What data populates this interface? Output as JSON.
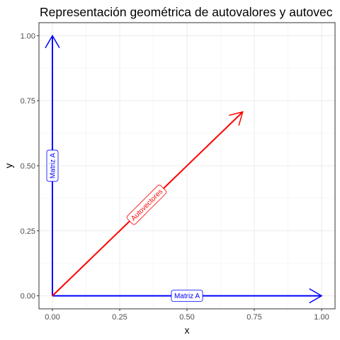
{
  "chart_data": {
    "type": "line",
    "title": "Representación geométrica de autovalores y autovec",
    "xlabel": "x",
    "ylabel": "y",
    "xlim": [
      -0.05,
      1.05
    ],
    "ylim": [
      -0.05,
      1.05
    ],
    "grid": true,
    "x_ticks": [
      0,
      0.25,
      0.5,
      0.75,
      1
    ],
    "y_ticks": [
      0,
      0.25,
      0.5,
      0.75,
      1
    ],
    "x_tick_labels": [
      "0.00",
      "0.25",
      "0.50",
      "0.75",
      "1.00"
    ],
    "y_tick_labels": [
      "0.00",
      "0.25",
      "0.50",
      "0.75",
      "1.00"
    ],
    "vectors": [
      {
        "id": "matriz-a-x",
        "x0": 0,
        "y0": 0,
        "x1": 1,
        "y1": 0,
        "color": "#0000ff",
        "label": "Matriz A",
        "label_x": 0.5,
        "label_y": 0,
        "label_angle": 0
      },
      {
        "id": "matriz-a-y",
        "x0": 0,
        "y0": 0,
        "x1": 0,
        "y1": 1,
        "color": "#0000ff",
        "label": "Matriz A",
        "label_x": 0,
        "label_y": 0.5,
        "label_angle": 90
      },
      {
        "id": "autovectores",
        "x0": 0,
        "y0": 0,
        "x1": 0.707,
        "y1": 0.707,
        "color": "#ff0000",
        "label": "Autovectores",
        "label_x": 0.35,
        "label_y": 0.35,
        "label_angle": 45
      }
    ]
  }
}
